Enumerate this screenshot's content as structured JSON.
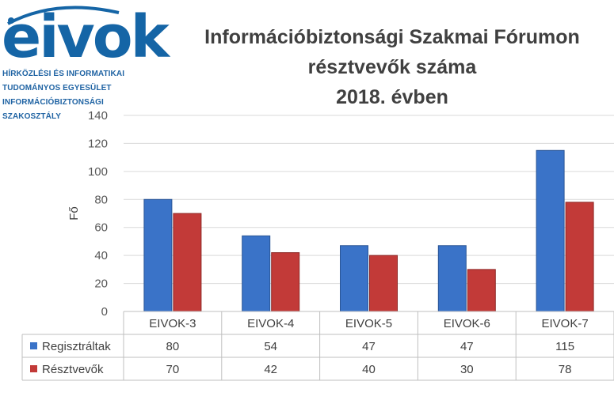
{
  "logo": {
    "wordmark": "eivok",
    "lines": [
      "HÍRKÖZLÉSI ÉS INFORMATIKAI",
      "TUDOMÁNYOS EGYESÜLET",
      "INFORMÁCIÓBIZTONSÁGI",
      "SZAKOSZTÁLY"
    ]
  },
  "chart_data": {
    "type": "bar",
    "title_lines": [
      "Információbiztonsági Szakmai Fórumon",
      "résztvevők száma",
      "2018. évben"
    ],
    "xlabel": "",
    "ylabel": "Fő",
    "ylim": [
      0,
      140
    ],
    "yticks": [
      0,
      20,
      40,
      60,
      80,
      100,
      120,
      140
    ],
    "categories": [
      "EIVOK-3",
      "EIVOK-4",
      "EIVOK-5",
      "EIVOK-6",
      "EIVOK-7"
    ],
    "series": [
      {
        "name": "Regisztráltak",
        "values": [
          80,
          54,
          47,
          47,
          115
        ],
        "color": "#3a73c8"
      },
      {
        "name": "Résztvevők",
        "values": [
          70,
          42,
          40,
          30,
          78
        ],
        "color": "#c23a38"
      }
    ],
    "grid": true,
    "legend": "data-table"
  }
}
